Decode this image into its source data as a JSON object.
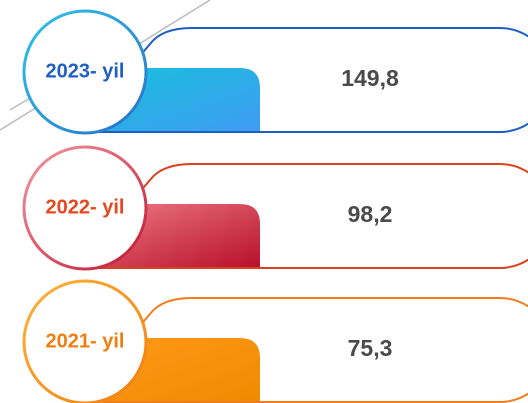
{
  "items": [
    {
      "year": "2023- yil",
      "value": "149,8"
    },
    {
      "year": "2022- yil",
      "value": "98,2"
    },
    {
      "year": "2021- yil",
      "value": "75,3"
    }
  ]
}
